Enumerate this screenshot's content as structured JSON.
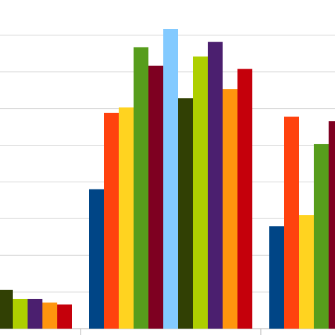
{
  "chart_data": {
    "type": "bar",
    "categories": [
      null,
      null,
      null
    ],
    "series": [
      {
        "color": "#004586",
        "values": [
          null,
          3.8,
          2.79
        ]
      },
      {
        "color": "#ff420e",
        "values": [
          null,
          5.88,
          5.78
        ]
      },
      {
        "color": "#ffd320",
        "values": [
          null,
          6.03,
          3.1
        ]
      },
      {
        "color": "#579d1c",
        "values": [
          null,
          7.67,
          5.03
        ]
      },
      {
        "color": "#7e0021",
        "values": [
          null,
          7.17,
          5.66
        ]
      },
      {
        "color": "#83caff",
        "values": [
          null,
          8.17,
          null
        ]
      },
      {
        "color": "#314004",
        "values": [
          1.06,
          6.28,
          null
        ]
      },
      {
        "color": "#aecf00",
        "values": [
          0.81,
          7.42,
          null
        ]
      },
      {
        "color": "#4b1f6f",
        "values": [
          0.81,
          7.82,
          null
        ]
      },
      {
        "color": "#ff950e",
        "values": [
          0.71,
          6.53,
          null
        ]
      },
      {
        "color": "#c5000b",
        "values": [
          0.66,
          7.08,
          null
        ]
      }
    ],
    "ylim": [
      0,
      8.96
    ],
    "yticks": [
      0,
      1,
      2,
      3,
      4,
      5,
      6,
      7,
      8
    ],
    "grid": true
  }
}
